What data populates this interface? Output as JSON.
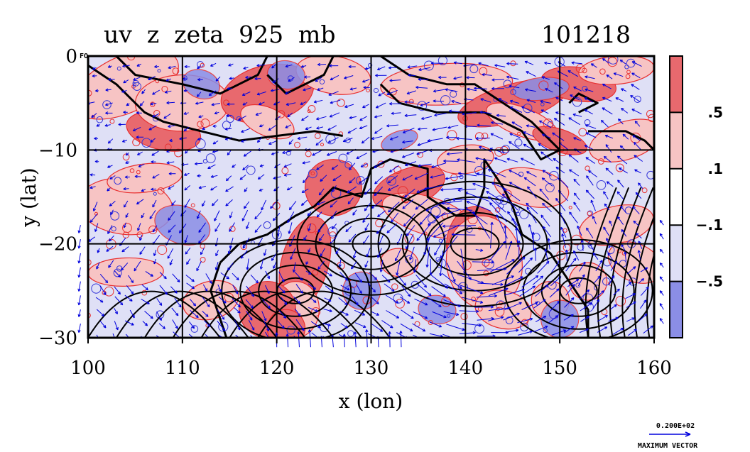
{
  "chart_data": {
    "type": "heatmap",
    "title_left": "uv  z  zeta  925  mb",
    "title_right": "101218",
    "corner_label": "FO",
    "xlabel": "x (lon)",
    "ylabel": "y (lat)",
    "xlim": [
      100,
      160
    ],
    "ylim": [
      -30,
      0
    ],
    "x_ticks": [
      {
        "value": 100,
        "label": "100"
      },
      {
        "value": 110,
        "label": "110"
      },
      {
        "value": 120,
        "label": "120"
      },
      {
        "value": 130,
        "label": "130"
      },
      {
        "value": 140,
        "label": "140"
      },
      {
        "value": 150,
        "label": "150"
      },
      {
        "value": 160,
        "label": "160"
      }
    ],
    "y_ticks": [
      {
        "value": 0,
        "label": "0"
      },
      {
        "value": -10,
        "label": "−10"
      },
      {
        "value": -20,
        "label": "−20"
      },
      {
        "value": -30,
        "label": "−30"
      }
    ],
    "grid": true,
    "colorbar": {
      "levels": [
        ".5",
        ".1",
        "−.1",
        "−.5"
      ],
      "level_values": [
        0.5,
        0.1,
        -0.1,
        -0.5
      ],
      "colors": [
        "#e8696e",
        "#f7c4c4",
        "#ffffff",
        "#dfe0f6",
        "#8b8ee6"
      ]
    },
    "fields": [
      {
        "name": "zeta",
        "kind": "filled contour",
        "positive_color": "#e8696e",
        "negative_color": "#8b8ee6"
      },
      {
        "name": "z",
        "kind": "contour lines",
        "color": "#000000"
      },
      {
        "name": "uv",
        "kind": "wind vectors",
        "color": "#0000dd"
      }
    ],
    "vector_reference": {
      "magnitude": "0.200E+02",
      "label": "MAXIMUM VECTOR"
    }
  },
  "colors": {
    "positive_strong": "#e8696e",
    "positive_weak": "#f7c4c4",
    "negative_weak": "#dfe0f6",
    "negative_strong": "#8b8ee6",
    "vectors": "#0000dd",
    "contours": "#000000"
  }
}
